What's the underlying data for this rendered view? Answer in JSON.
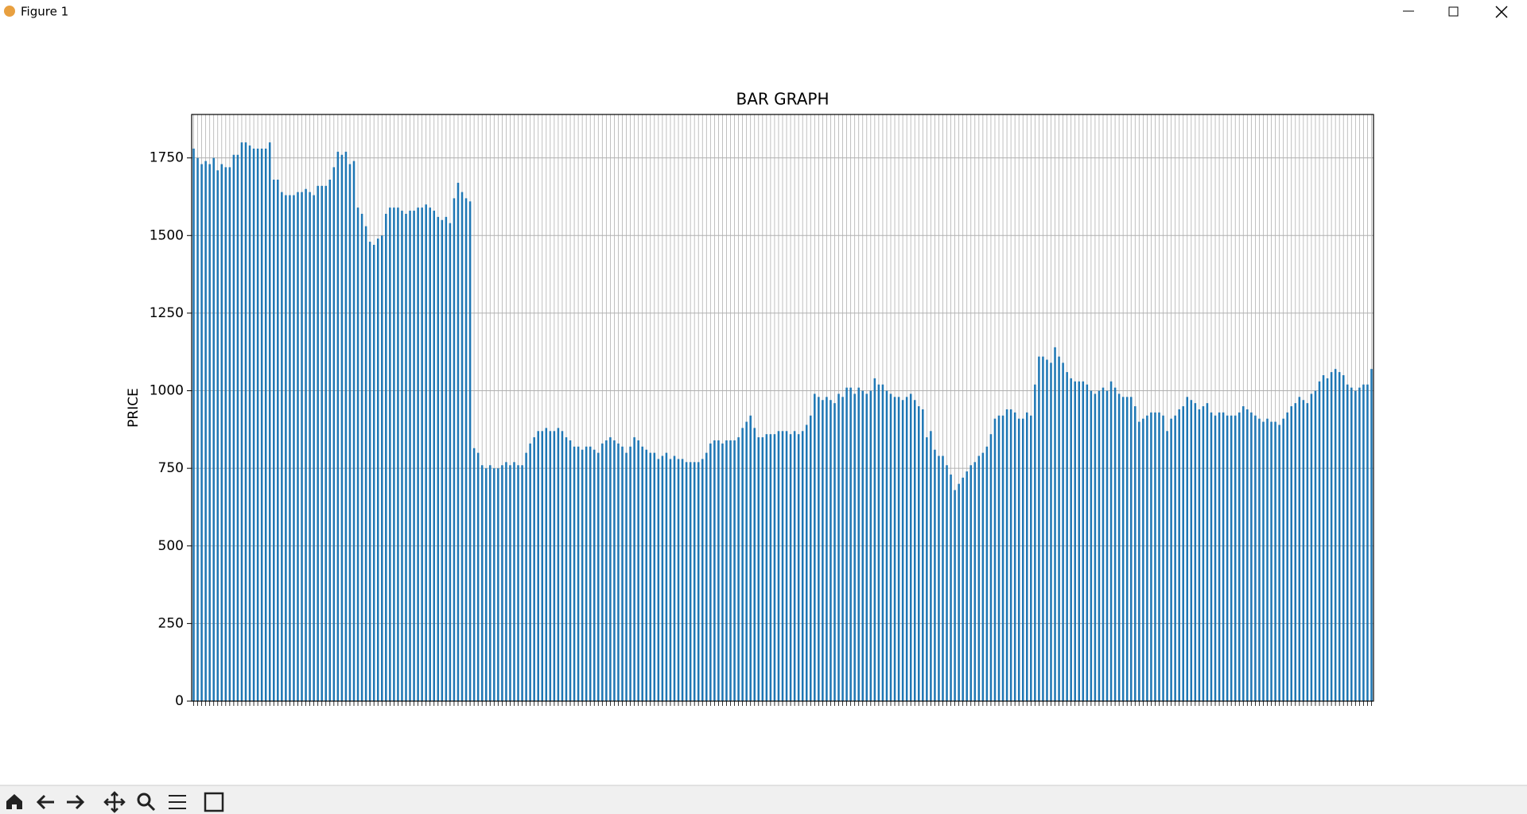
{
  "window": {
    "title": "Figure 1"
  },
  "chart_data": {
    "type": "bar",
    "title": "BAR GRAPH",
    "ylabel": "PRICE",
    "color": "#1f77b4",
    "grid": true,
    "ylim": [
      0,
      1890
    ],
    "yticks": [
      0,
      250,
      500,
      750,
      1000,
      1250,
      1500,
      1750
    ],
    "values": [
      1780,
      1750,
      1730,
      1740,
      1730,
      1750,
      1710,
      1730,
      1720,
      1720,
      1760,
      1760,
      1800,
      1800,
      1790,
      1780,
      1780,
      1780,
      1780,
      1800,
      1680,
      1680,
      1640,
      1630,
      1630,
      1630,
      1640,
      1640,
      1650,
      1640,
      1630,
      1660,
      1660,
      1660,
      1680,
      1720,
      1770,
      1760,
      1770,
      1730,
      1740,
      1590,
      1570,
      1530,
      1480,
      1470,
      1490,
      1500,
      1570,
      1590,
      1590,
      1590,
      1580,
      1570,
      1580,
      1580,
      1590,
      1590,
      1600,
      1590,
      1580,
      1560,
      1550,
      1560,
      1540,
      1620,
      1670,
      1640,
      1620,
      1610,
      815,
      800,
      760,
      750,
      760,
      750,
      750,
      760,
      770,
      760,
      770,
      760,
      760,
      800,
      830,
      850,
      870,
      870,
      880,
      870,
      870,
      880,
      870,
      850,
      840,
      820,
      820,
      810,
      820,
      820,
      810,
      800,
      830,
      840,
      850,
      840,
      830,
      820,
      800,
      820,
      850,
      840,
      820,
      810,
      800,
      800,
      780,
      790,
      800,
      780,
      790,
      780,
      780,
      770,
      770,
      770,
      770,
      780,
      800,
      830,
      840,
      840,
      830,
      840,
      840,
      840,
      850,
      880,
      900,
      920,
      880,
      850,
      850,
      860,
      860,
      860,
      870,
      870,
      870,
      860,
      870,
      860,
      870,
      890,
      920,
      990,
      980,
      970,
      980,
      970,
      960,
      990,
      980,
      1010,
      1010,
      990,
      1010,
      1000,
      990,
      1000,
      1040,
      1020,
      1020,
      1000,
      990,
      980,
      980,
      970,
      980,
      990,
      970,
      950,
      940,
      850,
      870,
      810,
      790,
      790,
      760,
      730,
      680,
      700,
      720,
      740,
      760,
      770,
      790,
      800,
      820,
      860,
      910,
      920,
      920,
      940,
      940,
      930,
      910,
      910,
      930,
      920,
      1020,
      1110,
      1110,
      1100,
      1090,
      1140,
      1110,
      1090,
      1060,
      1040,
      1030,
      1030,
      1030,
      1020,
      1000,
      990,
      1000,
      1010,
      1000,
      1030,
      1010,
      990,
      980,
      980,
      980,
      950,
      900,
      910,
      920,
      930,
      930,
      930,
      920,
      870,
      910,
      920,
      940,
      950,
      980,
      970,
      960,
      940,
      950,
      960,
      930,
      920,
      930,
      930,
      920,
      920,
      920,
      930,
      950,
      940,
      930,
      920,
      910,
      900,
      910,
      900,
      900,
      890,
      910,
      930,
      950,
      960,
      980,
      970,
      960,
      990,
      1000,
      1030,
      1050,
      1040,
      1060,
      1070,
      1060,
      1050,
      1020,
      1010,
      1000,
      1010,
      1020,
      1020,
      1070
    ]
  }
}
